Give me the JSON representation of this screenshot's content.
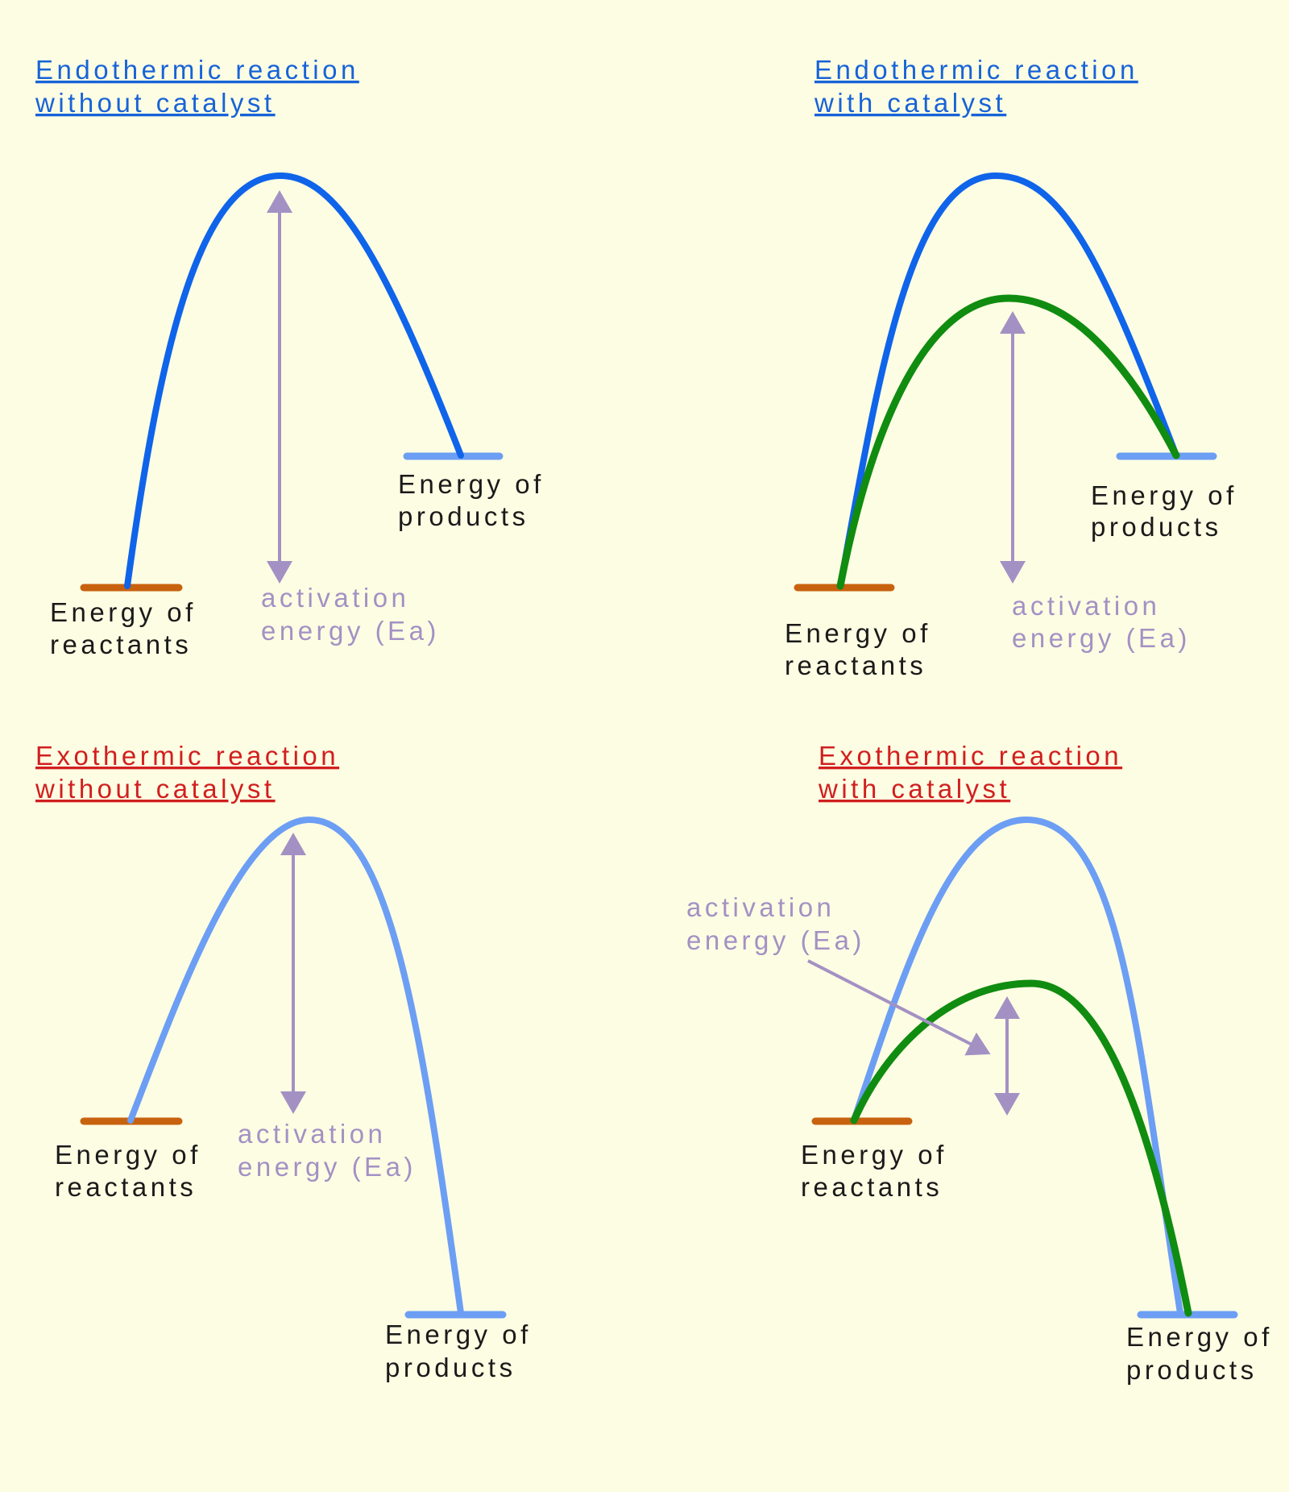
{
  "colors": {
    "background": "#fdfde3",
    "endothermic_title": "#1763d8",
    "exothermic_title": "#d11f1f",
    "uncatalysed_curve_endothermic": "#0f64ea",
    "uncatalysed_curve_exothermic": "#6c9ef4",
    "catalysed_curve": "#108c10",
    "reactants_level": "#c8620e",
    "products_level": "#6c9ef4",
    "activation_energy_arrow": "#a391c4"
  },
  "panels": {
    "endo_without": {
      "title_line1": "Endothermic reaction",
      "title_line2": "without catalyst",
      "products_line1": "Energy of",
      "products_line2": "products",
      "reactants_line1": "Energy of",
      "reactants_line2": "reactants",
      "ea_line1": "activation",
      "ea_line2": "energy (Ea)"
    },
    "endo_with": {
      "title_line1": "Endothermic reaction",
      "title_line2": "with catalyst",
      "products_line1": "Energy of",
      "products_line2": "products",
      "reactants_line1": "Energy of",
      "reactants_line2": "reactants",
      "ea_line1": "activation",
      "ea_line2": "energy (Ea)"
    },
    "exo_without": {
      "title_line1": "Exothermic reaction",
      "title_line2": "without catalyst",
      "reactants_line1": "Energy of",
      "reactants_line2": "reactants",
      "ea_line1": "activation",
      "ea_line2": "energy (Ea)",
      "products_line1": "Energy of",
      "products_line2": "products"
    },
    "exo_with": {
      "title_line1": "Exothermic reaction",
      "title_line2": "with catalyst",
      "ea_line1": "activation",
      "ea_line2": "energy (Ea)",
      "reactants_line1": "Energy of",
      "reactants_line2": "reactants",
      "products_line1": "Energy of",
      "products_line2": "products"
    }
  }
}
